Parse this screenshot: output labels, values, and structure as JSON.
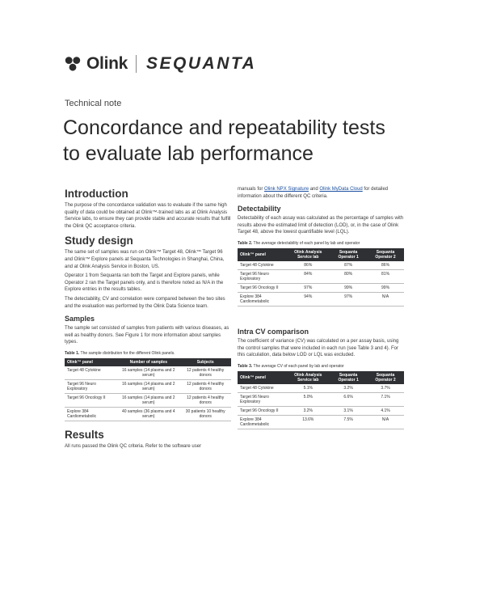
{
  "header": {
    "olink_logo_text": "Olink",
    "sequanta_logo_text": "SEQUANTA",
    "doc_type": "Technical note",
    "title_line1": "Concordance and repeatability tests",
    "title_line2": "to evaluate lab performance"
  },
  "left": {
    "intro_heading": "Introduction",
    "intro_text": "The purpose of the concordance validation was to evaluate if the same high quality of data could be obtained at Olink™-trained labs as at Olink Analysis Service labs, to ensure they can provide stable and accurate results that fulfill the Olink QC acceptance criteria.",
    "study_heading": "Study design",
    "study_p1": "The same set of samples was run on Olink™ Target 48, Olink™ Target 96 and Olink™ Explore panels at Sequanta Technologies in Shanghai, China, and at Olink Analysis Service in Boston, US.",
    "study_p2": "Operator 1 from Sequanta ran both the Target and Explore panels, while Operator 2 ran the Target panels only, and is therefore noted as N/A in the Explore entries in the results tables.",
    "study_p3": "The detectability, CV and correlation were compared between the two sites and the evaluation was performed by the Olink Data Science team.",
    "samples_heading": "Samples",
    "samples_text": "The sample set consisted of samples from patients with various diseases, as well as healthy donors. See Figure 1 for more information about samples types.",
    "table1": {
      "caption_bold": "Table 1.",
      "caption_rest": " The sample distribution for the different Olink panels.",
      "headers": [
        "Olink™ panel",
        "Number of samples",
        "Subjects"
      ],
      "rows": [
        {
          "panel": "Target 48 Cytokine",
          "samples": "16 samples (14 plasma and 2 serum)",
          "subjects": "12 patients 4 healthy donors"
        },
        {
          "panel": "Target 96 Neuro Exploratory",
          "samples": "16 samples (14 plasma and 2 serum)",
          "subjects": "12 patients 4 healthy donors"
        },
        {
          "panel": "Target 96 Oncology II",
          "samples": "16 samples (14 plasma and 2 serum)",
          "subjects": "12 patients 4 healthy donors"
        },
        {
          "panel": "Explore 384 Cardiometabolic",
          "samples": "40 samples (36 plasma and 4 serum)",
          "subjects": "30 patients 10 healthy donors"
        }
      ]
    },
    "results_heading": "Results",
    "results_text": "All runs passed the Olink QC criteria. Refer to the software user"
  },
  "right": {
    "manuals_pre": "manuals for ",
    "manuals_link1": "Olink NPX Signature",
    "manuals_mid": " and ",
    "manuals_link2": "Olink MyData Cloud",
    "manuals_post": " for detailed information about the different QC criteria.",
    "detect_heading": "Detectability",
    "detect_text": "Detectability of each assay was calculated as the percentage of samples with results above the estimated limit of detection (LOD), or, in the case of Olink Target 48, above the lowest quantifiable level (LQL).",
    "table2": {
      "caption_bold": "Table 2.",
      "caption_rest": " The average detectability of each panel by lab and operator",
      "headers": [
        "Olink™ panel",
        "Olink Analysis Service lab",
        "Sequanta Operator 1",
        "Sequanta Operator 2"
      ],
      "rows": [
        {
          "panel": "Target 48 Cytokine",
          "v1": "86%",
          "v2": "87%",
          "v3": "86%"
        },
        {
          "panel": "Target 96 Neuro Exploratory",
          "v1": "84%",
          "v2": "80%",
          "v3": "81%"
        },
        {
          "panel": "Target 96 Oncology II",
          "v1": "97%",
          "v2": "99%",
          "v3": "99%"
        },
        {
          "panel": "Explore 384 Cardiometabolic",
          "v1": "94%",
          "v2": "97%",
          "v3": "N/A"
        }
      ]
    },
    "intracv_heading": "Intra CV comparison",
    "intracv_text": "The coefficient of variance (CV) was calculated on a per assay basis, using the control samples that were included in each run (see Table 3 and 4). For this calculation, data below LOD or LQL was excluded.",
    "table3": {
      "caption_bold": "Table 3.",
      "caption_rest": " The average CV of each panel by lab and operator",
      "headers": [
        "Olink™ panel",
        "Olink Analysis Service lab",
        "Sequanta Operator 1",
        "Sequanta Operator 2"
      ],
      "rows": [
        {
          "panel": "Target 48 Cytokine",
          "v1": "5.1%",
          "v2": "3.2%",
          "v3": "3.7%"
        },
        {
          "panel": "Target 96 Neuro Exploratory",
          "v1": "5.0%",
          "v2": "6.6%",
          "v3": "7.1%"
        },
        {
          "panel": "Target 96 Oncology II",
          "v1": "3.2%",
          "v2": "3.1%",
          "v3": "4.1%"
        },
        {
          "panel": "Explore 384 Cardiometabolic",
          "v1": "13.6%",
          "v2": "7.5%",
          "v3": "N/A"
        }
      ]
    }
  }
}
